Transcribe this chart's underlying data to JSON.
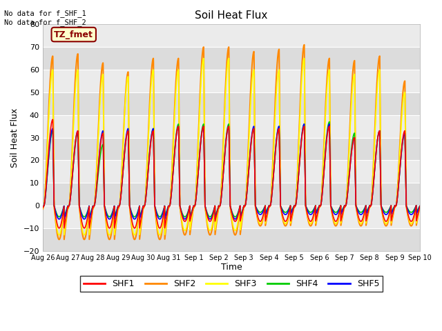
{
  "title": "Soil Heat Flux",
  "ylabel": "Soil Heat Flux",
  "xlabel": "Time",
  "ylim": [
    -20,
    80
  ],
  "fig_bg": "#ffffff",
  "plot_bg": "#e8e8e8",
  "band_light": "#f0f0f0",
  "band_dark": "#e0e0e0",
  "grid_color": "#ffffff",
  "no_data_text": "No data for f_SHF_1\nNo data for f_SHF_2",
  "tz_label": "TZ_fmet",
  "legend_labels": [
    "SHF1",
    "SHF2",
    "SHF3",
    "SHF4",
    "SHF5"
  ],
  "legend_colors": [
    "#ff0000",
    "#ff8800",
    "#ffff00",
    "#00cc00",
    "#0000ff"
  ],
  "num_days": 15,
  "shf1_peaks": [
    38,
    33,
    32,
    33,
    33,
    35,
    35,
    35,
    34,
    34,
    35,
    35,
    30,
    33,
    33
  ],
  "shf2_peaks": [
    66,
    67,
    63,
    59,
    65,
    65,
    70,
    70,
    68,
    69,
    71,
    65,
    64,
    66,
    55
  ],
  "shf3_peaks": [
    60,
    60,
    58,
    57,
    60,
    60,
    65,
    65,
    60,
    60,
    65,
    60,
    58,
    60,
    50
  ],
  "shf4_peaks": [
    33,
    32,
    27,
    33,
    34,
    36,
    36,
    36,
    34,
    35,
    36,
    37,
    32,
    33,
    32
  ],
  "shf5_peaks": [
    34,
    33,
    33,
    34,
    34,
    35,
    35,
    35,
    35,
    35,
    36,
    36,
    30,
    33,
    32
  ],
  "shf1_troughs": [
    -10,
    -10,
    -10,
    -10,
    -10,
    -7,
    -7,
    -7,
    -7,
    -7,
    -7,
    -7,
    -7,
    -7,
    -7
  ],
  "shf2_troughs": [
    -15,
    -15,
    -15,
    -15,
    -15,
    -13,
    -13,
    -13,
    -9,
    -9,
    -9,
    -9,
    -9,
    -9,
    -9
  ],
  "shf3_troughs": [
    -13,
    -13,
    -13,
    -13,
    -13,
    -11,
    -11,
    -11,
    -8,
    -8,
    -8,
    -8,
    -8,
    -8,
    -8
  ],
  "shf4_troughs": [
    -5,
    -5,
    -5,
    -5,
    -5,
    -5,
    -5,
    -5,
    -3,
    -3,
    -3,
    -3,
    -3,
    -3,
    -3
  ],
  "shf5_troughs": [
    -6,
    -6,
    -6,
    -6,
    -6,
    -6,
    -6,
    -6,
    -4,
    -4,
    -4,
    -4,
    -4,
    -4,
    -4
  ],
  "yticks": [
    -20,
    -10,
    0,
    10,
    20,
    30,
    40,
    50,
    60,
    70,
    80
  ],
  "xtick_labels": [
    "Aug 26",
    "Aug 27",
    "Aug 28",
    "Aug 29",
    "Aug 30",
    "Aug 31",
    "Sep 1",
    "Sep 2",
    "Sep 3",
    "Sep 4",
    "Sep 5",
    "Sep 6",
    "Sep 7",
    "Sep 8",
    "Sep 9",
    "Sep 10"
  ]
}
